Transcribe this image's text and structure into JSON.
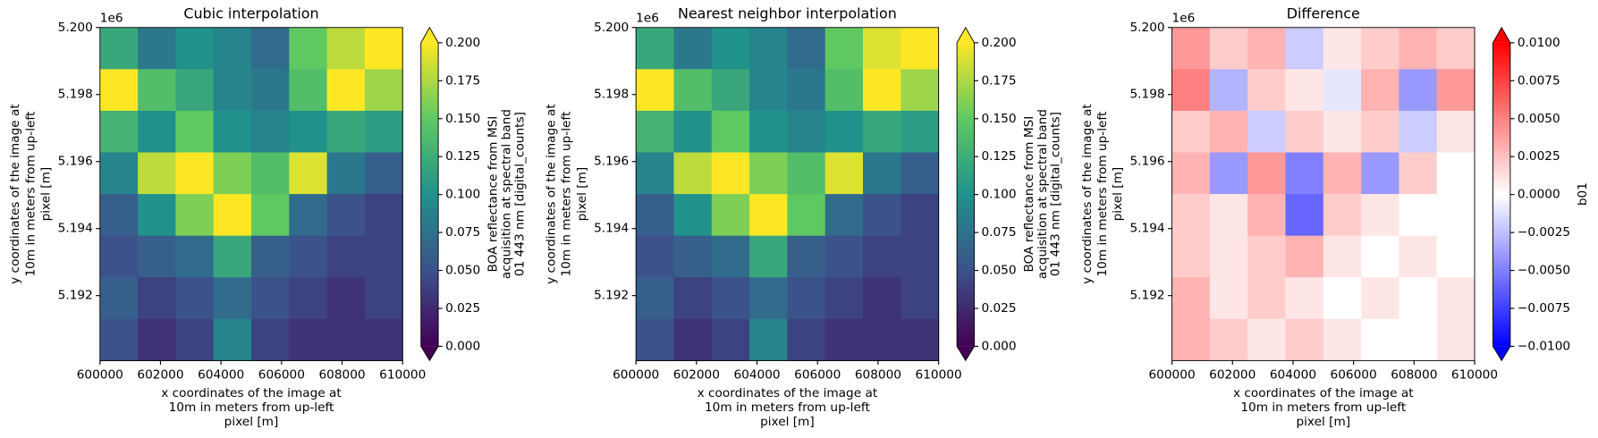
{
  "chart_data": [
    {
      "type": "heatmap",
      "title": "Cubic interpolation",
      "offset_text": "1e6",
      "xlabel": [
        "x coordinates of the image at",
        "10m in meters from up-left",
        "pixel [m]"
      ],
      "ylabel": [
        "y coordinates of the image at",
        "10m in meters from up-left",
        "pixel [m]"
      ],
      "xlim": [
        600000,
        610000
      ],
      "xticks": [
        600000,
        602000,
        604000,
        606000,
        608000,
        610000
      ],
      "ylim": [
        5190060,
        5200000
      ],
      "yticks": [
        {
          "value": 5192000,
          "label": "5.192"
        },
        {
          "value": 5194000,
          "label": "5.194"
        },
        {
          "value": 5196000,
          "label": "5.196"
        },
        {
          "value": 5198000,
          "label": "5.198"
        },
        {
          "value": 5200000,
          "label": "5.200"
        }
      ],
      "z": [
        [
          0.12,
          0.08,
          0.1,
          0.09,
          0.07,
          0.15,
          0.18,
          0.2
        ],
        [
          0.2,
          0.14,
          0.12,
          0.09,
          0.08,
          0.14,
          0.2,
          0.17
        ],
        [
          0.13,
          0.1,
          0.15,
          0.1,
          0.09,
          0.1,
          0.12,
          0.11
        ],
        [
          0.09,
          0.18,
          0.2,
          0.16,
          0.14,
          0.19,
          0.08,
          0.06
        ],
        [
          0.06,
          0.1,
          0.16,
          0.2,
          0.15,
          0.07,
          0.05,
          0.04
        ],
        [
          0.05,
          0.06,
          0.07,
          0.12,
          0.06,
          0.05,
          0.04,
          0.04
        ],
        [
          0.06,
          0.04,
          0.05,
          0.07,
          0.05,
          0.04,
          0.03,
          0.04
        ],
        [
          0.05,
          0.03,
          0.04,
          0.09,
          0.04,
          0.03,
          0.03,
          0.03
        ]
      ],
      "colorbar": {
        "colormap": "viridis",
        "extend": "both",
        "lim": [
          0,
          0.2
        ],
        "label": [
          "BOA reflectance from MSI",
          "acquisition at spectral band",
          "01 443 nm [digital_counts]"
        ],
        "ticks": [
          {
            "value": 0,
            "label": "0.000"
          },
          {
            "value": 0.025,
            "label": "0.025"
          },
          {
            "value": 0.05,
            "label": "0.050"
          },
          {
            "value": 0.075,
            "label": "0.075"
          },
          {
            "value": 0.1,
            "label": "0.100"
          },
          {
            "value": 0.125,
            "label": "0.125"
          },
          {
            "value": 0.15,
            "label": "0.150"
          },
          {
            "value": 0.175,
            "label": "0.175"
          },
          {
            "value": 0.2,
            "label": "0.200"
          }
        ]
      }
    },
    {
      "type": "heatmap",
      "title": "Nearest neighbor interpolation",
      "offset_text": "1e6",
      "xlabel": [
        "x coordinates of the image at",
        "10m in meters from up-left",
        "pixel [m]"
      ],
      "ylabel": [
        "y coordinates of the image at",
        "10m in meters from up-left",
        "pixel [m]"
      ],
      "xlim": [
        600000,
        610000
      ],
      "xticks": [
        600000,
        602000,
        604000,
        606000,
        608000,
        610000
      ],
      "ylim": [
        5190060,
        5200000
      ],
      "yticks": [
        {
          "value": 5192000,
          "label": "5.192"
        },
        {
          "value": 5194000,
          "label": "5.194"
        },
        {
          "value": 5196000,
          "label": "5.196"
        },
        {
          "value": 5198000,
          "label": "5.198"
        },
        {
          "value": 5200000,
          "label": "5.200"
        }
      ],
      "z": [
        [
          0.12,
          0.08,
          0.1,
          0.09,
          0.07,
          0.15,
          0.19,
          0.2
        ],
        [
          0.2,
          0.14,
          0.12,
          0.09,
          0.08,
          0.14,
          0.2,
          0.17
        ],
        [
          0.13,
          0.1,
          0.15,
          0.1,
          0.09,
          0.1,
          0.12,
          0.11
        ],
        [
          0.09,
          0.18,
          0.2,
          0.16,
          0.14,
          0.19,
          0.08,
          0.06
        ],
        [
          0.06,
          0.1,
          0.16,
          0.2,
          0.15,
          0.07,
          0.05,
          0.04
        ],
        [
          0.05,
          0.06,
          0.07,
          0.12,
          0.06,
          0.05,
          0.04,
          0.04
        ],
        [
          0.06,
          0.04,
          0.05,
          0.07,
          0.05,
          0.04,
          0.03,
          0.04
        ],
        [
          0.05,
          0.03,
          0.04,
          0.09,
          0.04,
          0.03,
          0.03,
          0.03
        ]
      ],
      "colorbar": {
        "colormap": "viridis",
        "extend": "both",
        "lim": [
          0,
          0.2
        ],
        "label": [
          "BOA reflectance from MSI",
          "acquisition at spectral band",
          "01 443 nm [digital_counts]"
        ],
        "ticks": [
          {
            "value": 0,
            "label": "0.000"
          },
          {
            "value": 0.025,
            "label": "0.025"
          },
          {
            "value": 0.05,
            "label": "0.050"
          },
          {
            "value": 0.075,
            "label": "0.075"
          },
          {
            "value": 0.1,
            "label": "0.100"
          },
          {
            "value": 0.125,
            "label": "0.125"
          },
          {
            "value": 0.15,
            "label": "0.150"
          },
          {
            "value": 0.175,
            "label": "0.175"
          },
          {
            "value": 0.2,
            "label": "0.200"
          }
        ]
      }
    },
    {
      "type": "heatmap",
      "title": "Difference",
      "offset_text": "1e6",
      "xlabel": [
        "x coordinates of the image at",
        "10m in meters from up-left",
        "pixel [m]"
      ],
      "ylabel": [
        "y coordinates of the image at",
        "10m in meters from up-left",
        "pixel [m]"
      ],
      "xlim": [
        600000,
        610000
      ],
      "xticks": [
        600000,
        602000,
        604000,
        606000,
        608000,
        610000
      ],
      "ylim": [
        5190060,
        5200000
      ],
      "yticks": [
        {
          "value": 5192000,
          "label": "5.192"
        },
        {
          "value": 5194000,
          "label": "5.194"
        },
        {
          "value": 5196000,
          "label": "5.196"
        },
        {
          "value": 5198000,
          "label": "5.198"
        },
        {
          "value": 5200000,
          "label": "5.200"
        }
      ],
      "z": [
        [
          0.004,
          0.002,
          0.003,
          -0.002,
          0.001,
          0.002,
          0.003,
          0.002
        ],
        [
          0.005,
          -0.003,
          0.002,
          0.001,
          -0.001,
          0.003,
          -0.004,
          0.004
        ],
        [
          0.002,
          0.003,
          -0.002,
          0.002,
          0.001,
          0.002,
          -0.002,
          0.001
        ],
        [
          0.003,
          -0.004,
          0.004,
          -0.005,
          0.003,
          -0.004,
          0.002,
          0.0
        ],
        [
          0.002,
          0.001,
          0.003,
          -0.006,
          0.002,
          0.001,
          0.0,
          0.0
        ],
        [
          0.002,
          0.001,
          0.002,
          0.003,
          0.001,
          0.0,
          0.001,
          0.0
        ],
        [
          0.003,
          0.001,
          0.002,
          0.001,
          0.0,
          0.001,
          0.0,
          0.001
        ],
        [
          0.003,
          0.002,
          0.001,
          0.002,
          0.001,
          0.0,
          0.0,
          0.001
        ]
      ],
      "colorbar": {
        "colormap": "bwr",
        "extend": "both",
        "lim": [
          -0.01,
          0.01
        ],
        "label": [
          "b01"
        ],
        "ticks": [
          {
            "value": -0.01,
            "label": "−0.0100"
          },
          {
            "value": -0.0075,
            "label": "−0.0075"
          },
          {
            "value": -0.005,
            "label": "−0.0050"
          },
          {
            "value": -0.0025,
            "label": "−0.0025"
          },
          {
            "value": 0,
            "label": "0.0000"
          },
          {
            "value": 0.0025,
            "label": "0.0025"
          },
          {
            "value": 0.005,
            "label": "0.0050"
          },
          {
            "value": 0.0075,
            "label": "0.0075"
          },
          {
            "value": 0.01,
            "label": "0.0100"
          }
        ]
      }
    }
  ]
}
